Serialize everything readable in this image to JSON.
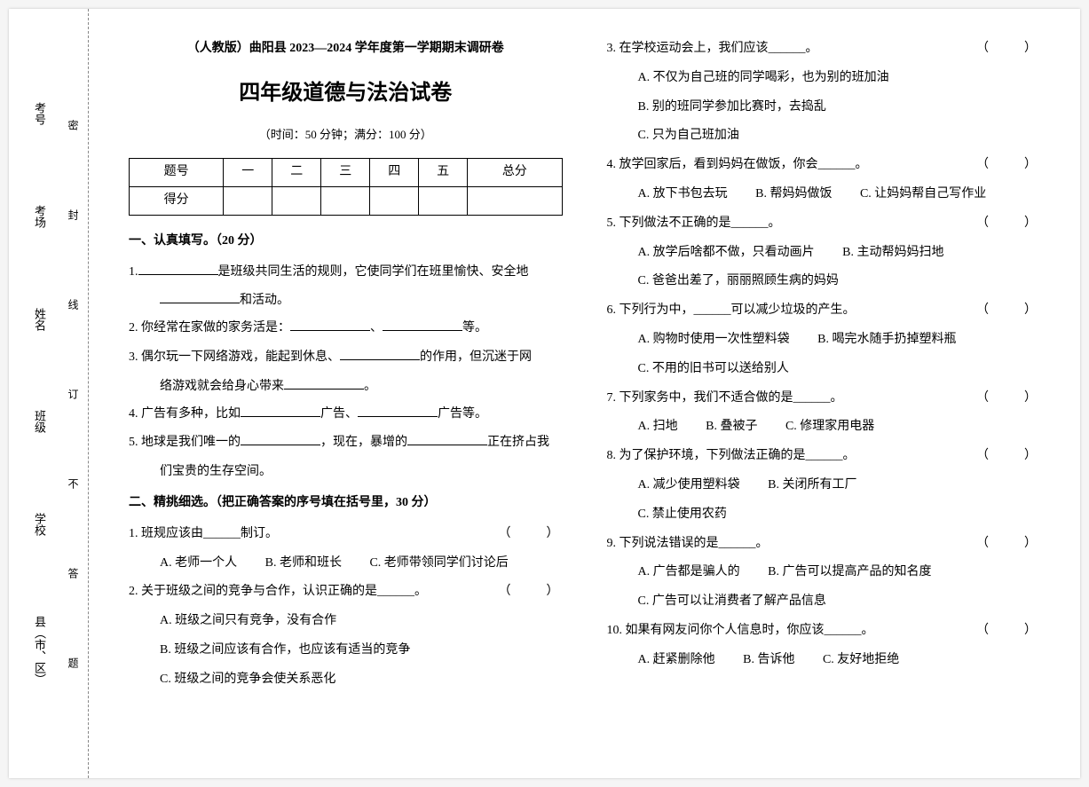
{
  "binding": {
    "fields": [
      "考号",
      "考场",
      "姓名",
      "班级",
      "学校",
      "县（市、区）"
    ],
    "marks": [
      "密",
      "封",
      "线",
      "订",
      "不",
      "答",
      "题"
    ]
  },
  "header": {
    "small": "（人教版）曲阳县 2023—2024 学年度第一学期期末调研卷",
    "title": "四年级道德与法治试卷",
    "meta": "（时间：50 分钟；满分：100 分）"
  },
  "table": {
    "head": [
      "题号",
      "一",
      "二",
      "三",
      "四",
      "五",
      "总分"
    ],
    "row_label": "得分"
  },
  "section1": {
    "title": "一、认真填写。（20 分）",
    "q1a": "1.",
    "q1b": "是班级共同生活的规则，它使同学们在班里愉快、安全地",
    "q1c": "和活动。",
    "q2a": "2. 你经常在家做的家务活是：",
    "q2b": "、",
    "q2c": "等。",
    "q3a": "3. 偶尔玩一下网络游戏，能起到休息、",
    "q3b": "的作用，但沉迷于网",
    "q3c": "络游戏就会给身心带来",
    "q3d": "。",
    "q4a": "4. 广告有多种，比如",
    "q4b": "广告、",
    "q4c": "广告等。",
    "q5a": "5. 地球是我们唯一的",
    "q5b": "，现在，暴增的",
    "q5c": "正在挤占我",
    "q5d": "们宝贵的生存空间。"
  },
  "section2": {
    "title": "二、精挑细选。（把正确答案的序号填在括号里，30 分）",
    "q1": {
      "stem": "1. 班规应该由______制订。",
      "A": "A. 老师一个人",
      "B": "B. 老师和班长",
      "C": "C. 老师带领同学们讨论后"
    },
    "q2": {
      "stem": "2. 关于班级之间的竞争与合作，认识正确的是______。",
      "A": "A. 班级之间只有竞争，没有合作",
      "B": "B. 班级之间应该有合作，也应该有适当的竞争",
      "C": "C. 班级之间的竞争会使关系恶化"
    },
    "q3": {
      "stem": "3. 在学校运动会上，我们应该______。",
      "A": "A. 不仅为自己班的同学喝彩，也为别的班加油",
      "B": "B. 别的班同学参加比赛时，去捣乱",
      "C": "C. 只为自己班加油"
    },
    "q4": {
      "stem": "4. 放学回家后，看到妈妈在做饭，你会______。",
      "A": "A. 放下书包去玩",
      "B": "B. 帮妈妈做饭",
      "C": "C. 让妈妈帮自己写作业"
    },
    "q5": {
      "stem": "5. 下列做法不正确的是______。",
      "A": "A. 放学后啥都不做，只看动画片",
      "B": "B. 主动帮妈妈扫地",
      "C": "C. 爸爸出差了，丽丽照顾生病的妈妈"
    },
    "q6": {
      "stem": "6. 下列行为中，______可以减少垃圾的产生。",
      "A": "A. 购物时使用一次性塑料袋",
      "B": "B. 喝完水随手扔掉塑料瓶",
      "C": "C. 不用的旧书可以送给别人"
    },
    "q7": {
      "stem": "7. 下列家务中，我们不适合做的是______。",
      "A": "A. 扫地",
      "B": "B. 叠被子",
      "C": "C. 修理家用电器"
    },
    "q8": {
      "stem": "8. 为了保护环境，下列做法正确的是______。",
      "A": "A. 减少使用塑料袋",
      "B": "B. 关闭所有工厂",
      "C": "C. 禁止使用农药"
    },
    "q9": {
      "stem": "9. 下列说法错误的是______。",
      "A": "A. 广告都是骗人的",
      "B": "B. 广告可以提高产品的知名度",
      "C": "C. 广告可以让消费者了解产品信息"
    },
    "q10": {
      "stem": "10. 如果有网友问你个人信息时，你应该______。",
      "A": "A. 赶紧删除他",
      "B": "B. 告诉他",
      "C": "C. 友好地拒绝"
    }
  },
  "brackets": "（　　）"
}
